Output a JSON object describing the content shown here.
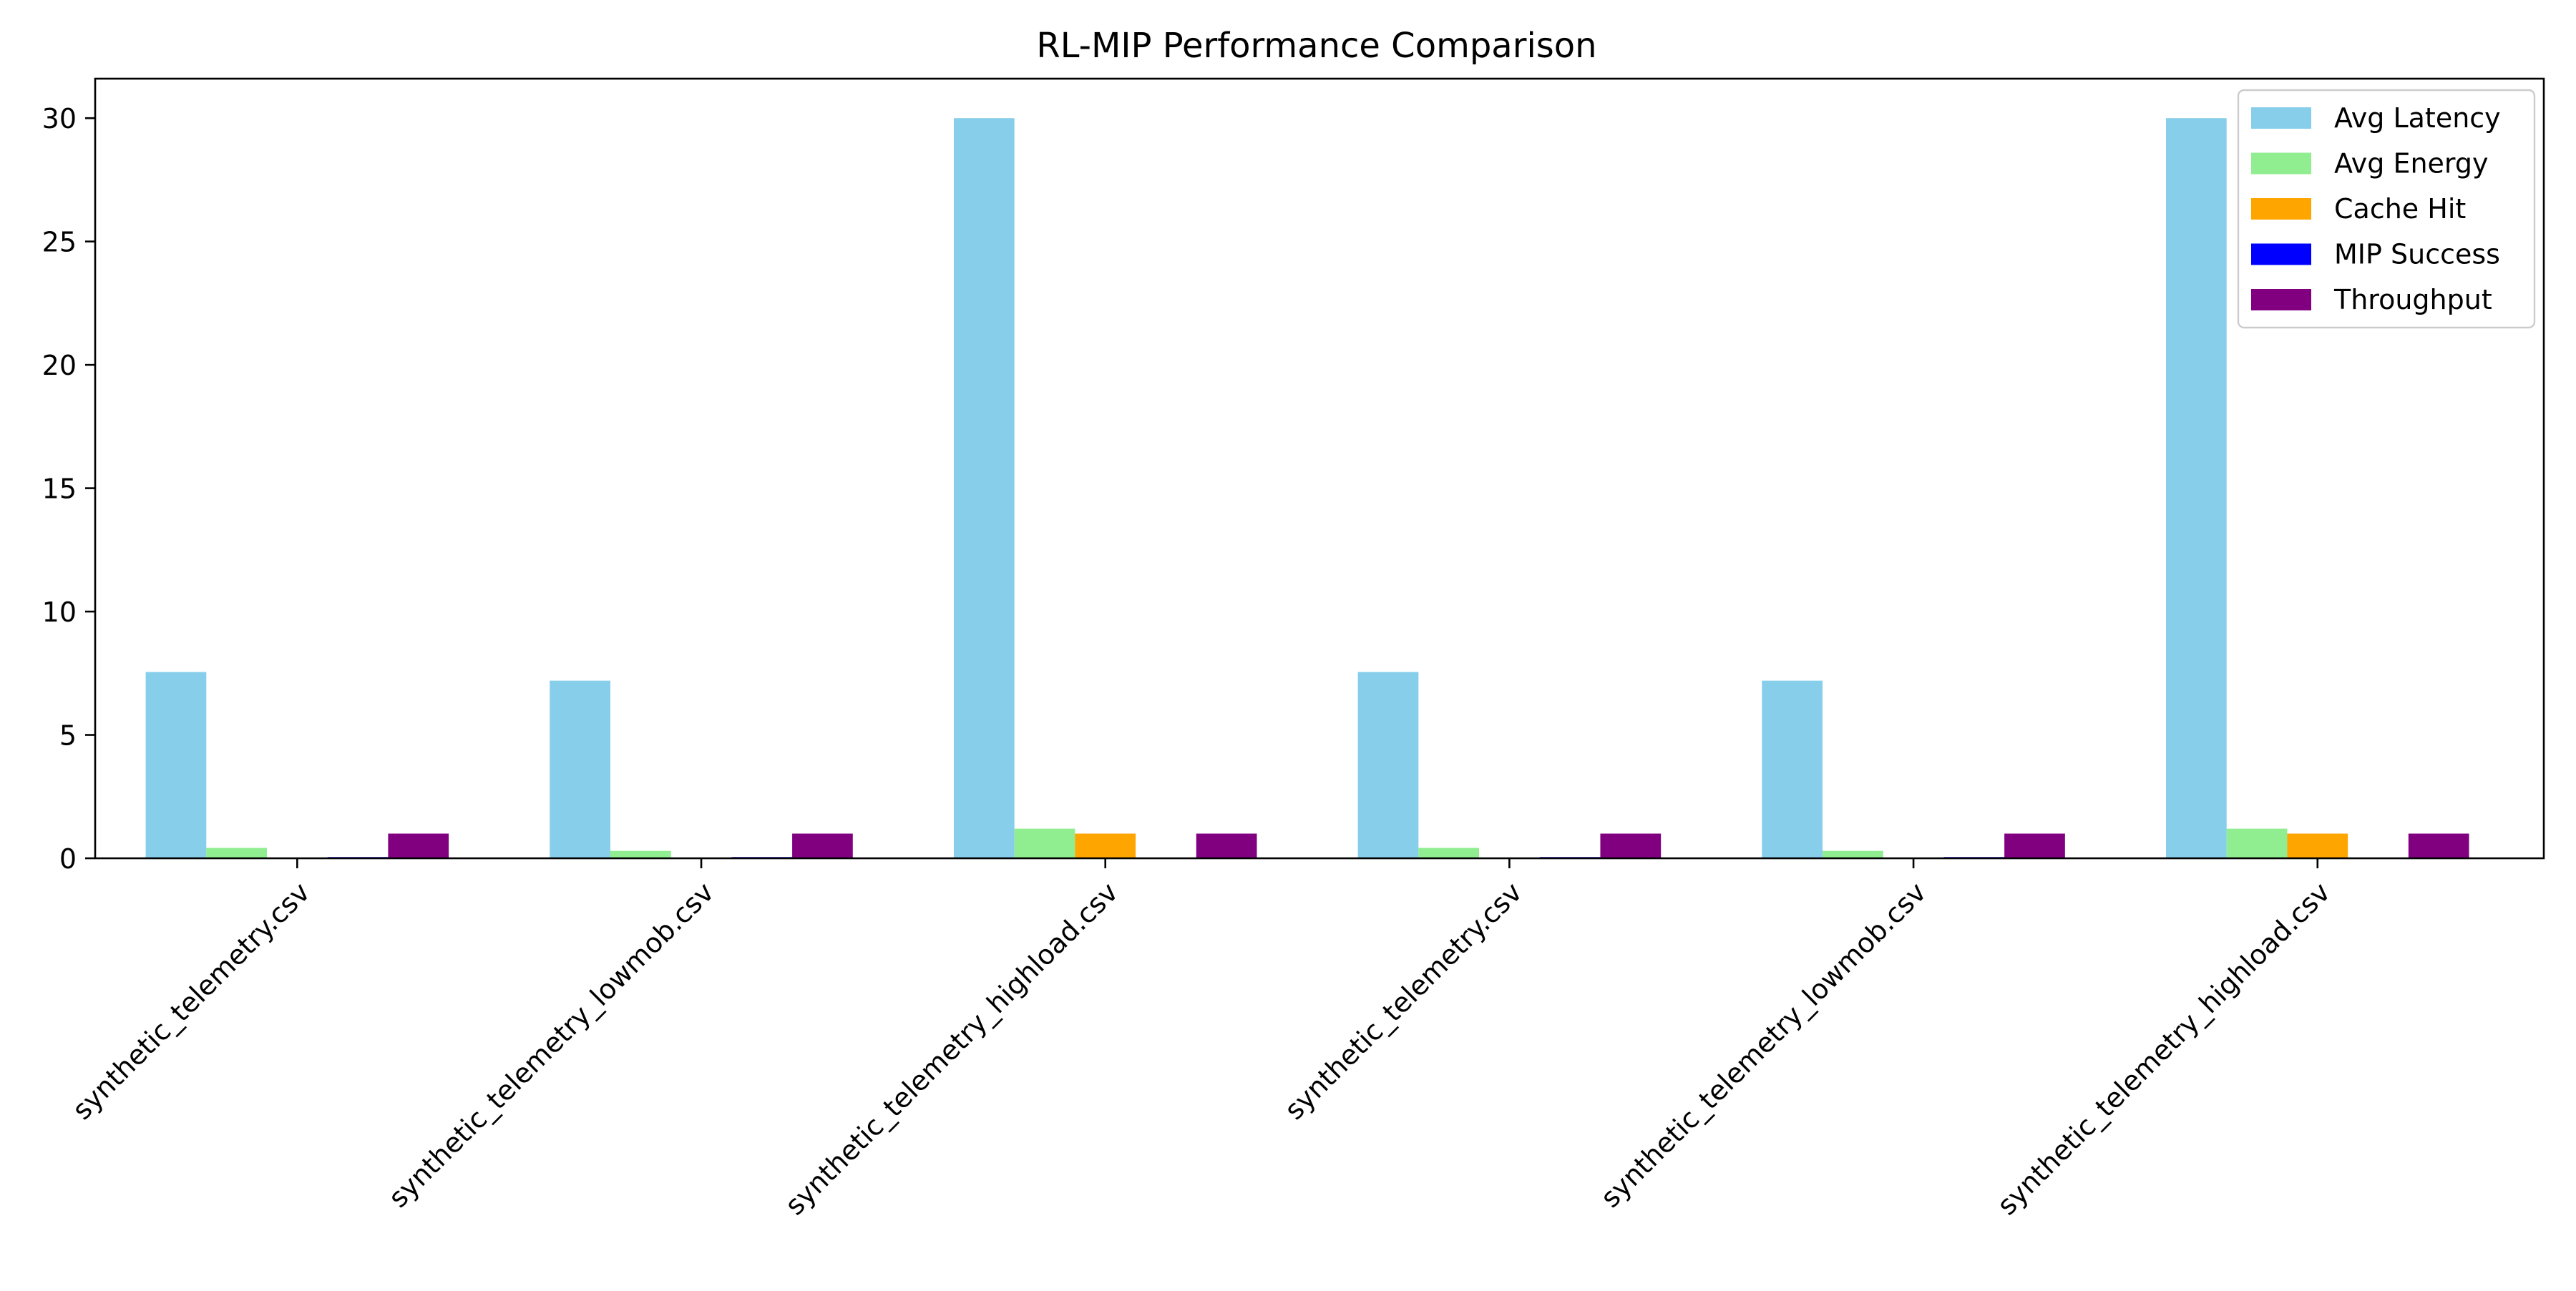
{
  "chart_data": {
    "type": "bar",
    "title": "RL-MIP Performance Comparison",
    "xlabel": "",
    "ylabel": "",
    "ylim": [
      0,
      31.6
    ],
    "yticks": [
      0,
      5,
      10,
      15,
      20,
      25,
      30
    ],
    "grid": false,
    "legend_position": "top-right",
    "categories": [
      "synthetic_telemetry.csv",
      "synthetic_telemetry_lowmob.csv",
      "synthetic_telemetry_highload.csv",
      "synthetic_telemetry.csv",
      "synthetic_telemetry_lowmob.csv",
      "synthetic_telemetry_highload.csv"
    ],
    "series": [
      {
        "name": "Avg Latency",
        "color": "#87ceeb",
        "values": [
          7.55,
          7.2,
          30.0,
          7.55,
          7.2,
          30.0
        ]
      },
      {
        "name": "Avg Energy",
        "color": "#90ee90",
        "values": [
          0.42,
          0.3,
          1.2,
          0.42,
          0.3,
          1.2
        ]
      },
      {
        "name": "Cache Hit",
        "color": "#ffa500",
        "values": [
          0.0,
          0.0,
          1.0,
          0.02,
          0.0,
          1.0
        ]
      },
      {
        "name": "MIP Success",
        "color": "#0000ff",
        "values": [
          0.05,
          0.05,
          0.0,
          0.05,
          0.05,
          0.0
        ]
      },
      {
        "name": "Throughput",
        "color": "#800080",
        "values": [
          1.0,
          1.0,
          1.0,
          1.0,
          1.0,
          1.0
        ]
      }
    ]
  }
}
